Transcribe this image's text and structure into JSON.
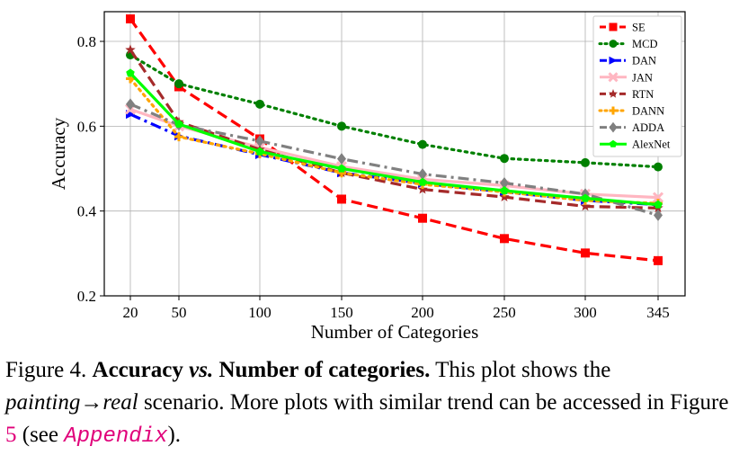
{
  "chart_data": {
    "type": "line",
    "xlabel": "Number of Categories",
    "ylabel": "Accuracy",
    "x": [
      20,
      50,
      100,
      150,
      200,
      250,
      300,
      345
    ],
    "x_tick_labels": [
      "20",
      "50",
      "100",
      "150",
      "200",
      "250",
      "300",
      "345"
    ],
    "y_ticks": [
      0.2,
      0.4,
      0.6,
      0.8
    ],
    "y_tick_labels": [
      "0.2",
      "0.4",
      "0.6",
      "0.8"
    ],
    "ylim": [
      0.2,
      0.87
    ],
    "grid": true,
    "legend_position": "top-right",
    "series": [
      {
        "name": "SE",
        "color": "#ff0000",
        "marker": "square",
        "dash": "dashed",
        "values": [
          0.853,
          0.693,
          0.57,
          0.428,
          0.383,
          0.335,
          0.301,
          0.283
        ]
      },
      {
        "name": "MCD",
        "color": "#008000",
        "marker": "circle",
        "dash": "dotted",
        "values": [
          0.768,
          0.7,
          0.652,
          0.6,
          0.557,
          0.524,
          0.514,
          0.504
        ]
      },
      {
        "name": "DAN",
        "color": "#0000ff",
        "marker": "triangle-right",
        "dash": "dashdot",
        "values": [
          0.628,
          0.577,
          0.533,
          0.49,
          0.465,
          0.445,
          0.425,
          0.415
        ]
      },
      {
        "name": "JAN",
        "color": "#ffb6c1",
        "marker": "x",
        "dash": "solid",
        "values": [
          0.64,
          0.6,
          0.55,
          0.505,
          0.475,
          0.46,
          0.44,
          0.432
        ]
      },
      {
        "name": "RTN",
        "color": "#a52a2a",
        "marker": "star",
        "dash": "dashed",
        "values": [
          0.78,
          0.61,
          0.545,
          0.49,
          0.451,
          0.433,
          0.411,
          0.407
        ]
      },
      {
        "name": "DANN",
        "color": "#ffa500",
        "marker": "plus",
        "dash": "dotted",
        "values": [
          0.712,
          0.575,
          0.535,
          0.49,
          0.463,
          0.445,
          0.425,
          0.418
        ]
      },
      {
        "name": "ADDA",
        "color": "#808080",
        "marker": "diamond",
        "dash": "dashdot",
        "values": [
          0.652,
          0.603,
          0.565,
          0.523,
          0.487,
          0.466,
          0.44,
          0.39
        ]
      },
      {
        "name": "AlexNet",
        "color": "#00ff00",
        "marker": "pentagon",
        "dash": "solid",
        "values": [
          0.725,
          0.605,
          0.54,
          0.5,
          0.468,
          0.448,
          0.43,
          0.415
        ]
      }
    ]
  },
  "caption": {
    "figure_label": "Figure 4.",
    "title_part1": "Accuracy",
    "title_vs": "vs.",
    "title_part2": "Number of categories.",
    "text1": " This plot shows the ",
    "scenario_from": "painting",
    "arrow": "→",
    "scenario_to": "real",
    "text2": " scenario. More plots with similar trend can be accessed in Figure ",
    "figure_ref": "5",
    "text3": " (see ",
    "appendix_ref": "Appendix",
    "text4": ")."
  }
}
